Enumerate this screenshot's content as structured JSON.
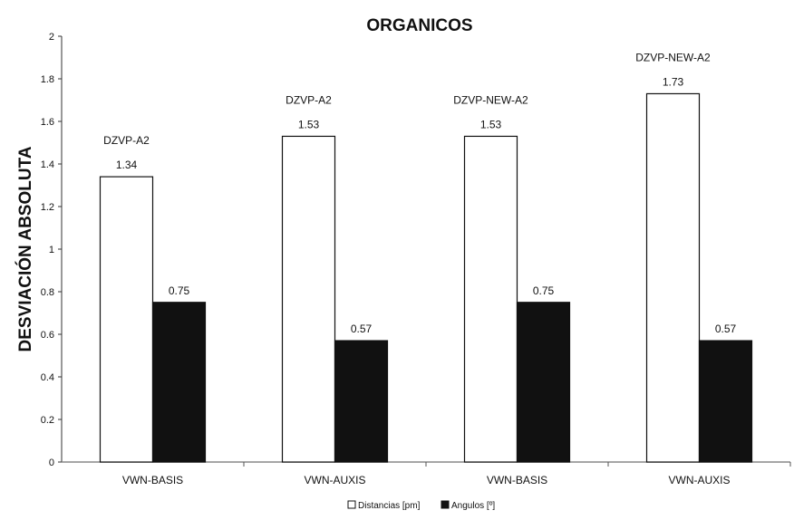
{
  "chart_data": {
    "type": "bar",
    "title": "ORGANICOS",
    "ylabel": "DESVIACIÓN ABSOLUTA",
    "xlabel": "",
    "ylim": [
      0,
      2
    ],
    "yticks": [
      "0",
      "0.2",
      "0.4",
      "0.6",
      "0.8",
      "1",
      "1.2",
      "1.4",
      "1.6",
      "1.8",
      "2"
    ],
    "categories": [
      "VWN-BASIS",
      "VWN-AUXIS",
      "VWN-BASIS",
      "VWN-AUXIS"
    ],
    "basis_labels": [
      "DZVP-A2",
      "DZVP-A2",
      "DZVP-NEW-A2",
      "DZVP-NEW-A2"
    ],
    "series": [
      {
        "name": "Distancias [pm]",
        "values": [
          1.34,
          1.53,
          1.53,
          1.73
        ],
        "labels": [
          "1.34",
          "1.53",
          "1.53",
          "1.73"
        ],
        "fill": "#ffffff"
      },
      {
        "name": "Angulos [º]",
        "values": [
          0.75,
          0.57,
          0.75,
          0.57
        ],
        "labels": [
          "0.75",
          "0.57",
          "0.75",
          "0.57"
        ],
        "fill": "#111111"
      }
    ],
    "grid": false,
    "legend_position": "bottom"
  }
}
